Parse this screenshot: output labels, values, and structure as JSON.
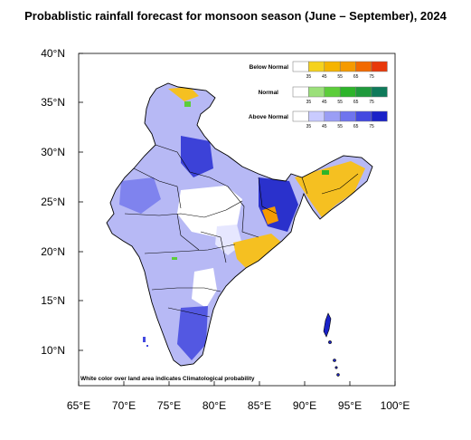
{
  "title": "Probablistic rainfall forecast for monsoon season (June – September), 2024",
  "axes": {
    "x_ticks": [
      "65°E",
      "70°E",
      "75°E",
      "80°E",
      "85°E",
      "90°E",
      "95°E",
      "100°E"
    ],
    "y_ticks": [
      "40°N",
      "35°N",
      "30°N",
      "25°N",
      "20°N",
      "15°N",
      "10°N"
    ],
    "lon_range": [
      65,
      100
    ],
    "lat_range": [
      6.5,
      40
    ]
  },
  "legend": {
    "categories": [
      {
        "label": "Below Normal",
        "colors": [
          "#ffffff",
          "#f5d21e",
          "#f5b400",
          "#f59a00",
          "#f26a00",
          "#e8380a"
        ]
      },
      {
        "label": "Normal",
        "colors": [
          "#ffffff",
          "#9be07a",
          "#5ccd3a",
          "#2db42a",
          "#1f9a3c",
          "#0e7a5a"
        ]
      },
      {
        "label": "Above Normal",
        "colors": [
          "#ffffff",
          "#c9cbff",
          "#9a9ef5",
          "#6f74ee",
          "#4349e0",
          "#1a22c8"
        ]
      }
    ],
    "ticks": [
      "35",
      "45",
      "55",
      "65",
      "75"
    ]
  },
  "note": "White color over land area indicates Climatological probability"
}
